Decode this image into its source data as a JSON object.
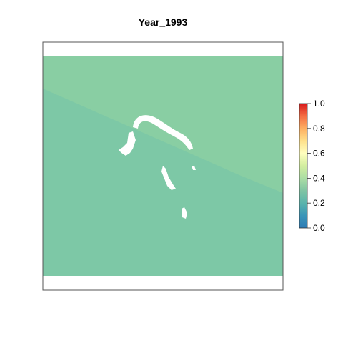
{
  "chart_data": {
    "type": "heatmap",
    "title": "Year_1993",
    "xlabel": "",
    "ylabel": "",
    "grid": false,
    "legend": "right",
    "colorbar": {
      "range": [
        0,
        1
      ],
      "ticks": [
        0.0,
        0.2,
        0.4,
        0.6,
        0.8,
        1.0
      ],
      "tick_labels": [
        "0.0",
        "0.2",
        "0.4",
        "0.6",
        "0.8",
        "1.0"
      ],
      "palette": [
        "#2c7bb6",
        "#3a95b8",
        "#5ab4ac",
        "#80c4a3",
        "#abdda4",
        "#d3ee9f",
        "#ffffbf",
        "#fee08b",
        "#fdae61",
        "#f46d43",
        "#d7191c"
      ]
    },
    "regions": [
      {
        "name": "",
        "value": 0.22,
        "color": "#7dc8a6"
      },
      {
        "name": "",
        "value": 0.25,
        "color": "#89cea3"
      }
    ],
    "missing_value_color": "#ffffff"
  }
}
